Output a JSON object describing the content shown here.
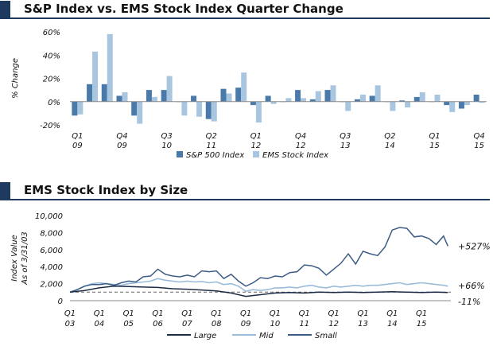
{
  "colors": {
    "sp500": "#4a7aaa",
    "ems": "#a9c6e0",
    "large": "#1c2b45",
    "mid": "#9bbcd9",
    "small": "#3c5c86",
    "header": "#1f3a5f"
  },
  "chart_data": [
    {
      "type": "bar",
      "title": "S&P Index vs. EMS Stock Index Quarter Change",
      "xlabel": "",
      "ylabel": "% Change",
      "ylim": [
        -20,
        60
      ],
      "yticks": [
        "60%",
        "40%",
        "20%",
        "0%",
        "-20%"
      ],
      "tick_values": [
        60,
        40,
        20,
        0,
        -20
      ],
      "xtick_labels": [
        {
          "q": "Q1",
          "y": "09",
          "index": 0
        },
        {
          "q": "Q4",
          "y": "09",
          "index": 3
        },
        {
          "q": "Q3",
          "y": "10",
          "index": 6
        },
        {
          "q": "Q2",
          "y": "11",
          "index": 9
        },
        {
          "q": "Q1",
          "y": "12",
          "index": 12
        },
        {
          "q": "Q4",
          "y": "12",
          "index": 15
        },
        {
          "q": "Q3",
          "y": "13",
          "index": 18
        },
        {
          "q": "Q2",
          "y": "14",
          "index": 21
        },
        {
          "q": "Q1",
          "y": "15",
          "index": 24
        },
        {
          "q": "Q4",
          "y": "15",
          "index": 27
        }
      ],
      "categories": [
        "Q1 09",
        "Q2 09",
        "Q3 09",
        "Q4 09",
        "Q1 10",
        "Q2 10",
        "Q3 10",
        "Q4 10",
        "Q1 11",
        "Q2 11",
        "Q3 11",
        "Q4 11",
        "Q1 12",
        "Q2 12",
        "Q3 12",
        "Q4 12",
        "Q1 13",
        "Q2 13",
        "Q3 13",
        "Q4 13",
        "Q1 14",
        "Q2 14",
        "Q3 14",
        "Q4 14",
        "Q1 15",
        "Q2 15",
        "Q3 15",
        "Q4 15"
      ],
      "series": [
        {
          "name": "S&P 500 Index",
          "values": [
            -12,
            15,
            15,
            5,
            -12,
            10,
            10,
            0,
            5,
            -15,
            11,
            12,
            -3,
            5,
            0,
            10,
            2,
            10,
            0,
            2,
            5,
            0,
            1,
            4,
            0,
            -3,
            -6,
            6
          ]
        },
        {
          "name": "EMS Stock Index",
          "values": [
            -11,
            43,
            58,
            8,
            -19,
            4,
            22,
            -12,
            -13,
            -17,
            7,
            25,
            -18,
            -2,
            3,
            3,
            9,
            14,
            -8,
            6,
            14,
            -8,
            -5,
            8,
            6,
            -9,
            -3,
            -1
          ]
        }
      ],
      "legend": [
        "S&P 500 Index",
        "EMS Stock Index"
      ]
    },
    {
      "type": "line",
      "title": "EMS Stock Index by Size",
      "xlabel": "",
      "ylabel": "Index Value As of 3/31/03",
      "ylabel_lines": [
        "Index Value",
        "As of 3/31/03"
      ],
      "ylim": [
        0,
        10000
      ],
      "yticks": [
        "10,000",
        "8,000",
        "6,000",
        "4,000",
        "2,000",
        "0"
      ],
      "tick_values": [
        10000,
        8000,
        6000,
        4000,
        2000,
        0
      ],
      "reference_line": 1000,
      "xtick_labels": [
        {
          "q": "Q1",
          "y": "03"
        },
        {
          "q": "Q1",
          "y": "04"
        },
        {
          "q": "Q1",
          "y": "05"
        },
        {
          "q": "Q1",
          "y": "06"
        },
        {
          "q": "Q1",
          "y": "07"
        },
        {
          "q": "Q1",
          "y": "08"
        },
        {
          "q": "Q1",
          "y": "09"
        },
        {
          "q": "Q1",
          "y": "10"
        },
        {
          "q": "Q1",
          "y": "11"
        },
        {
          "q": "Q1",
          "y": "12"
        },
        {
          "q": "Q1",
          "y": "13"
        },
        {
          "q": "Q1",
          "y": "14"
        },
        {
          "q": "Q1",
          "y": "15"
        }
      ],
      "x_start": 2003,
      "x_end": 2016,
      "series": [
        {
          "name": "Large",
          "x": [
            2003,
            2003.5,
            2004,
            2004.5,
            2005,
            2005.5,
            2006,
            2006.5,
            2007,
            2007.5,
            2008,
            2008.5,
            2009,
            2009.5,
            2010,
            2010.5,
            2011,
            2011.5,
            2012,
            2012.5,
            2013,
            2013.5,
            2014,
            2014.5,
            2015,
            2015.5,
            2015.9
          ],
          "values": [
            1000,
            1200,
            1500,
            1700,
            1650,
            1600,
            1550,
            1400,
            1350,
            1250,
            1150,
            900,
            500,
            700,
            900,
            950,
            900,
            1000,
            950,
            1000,
            950,
            1000,
            1050,
            1000,
            950,
            1000,
            950
          ]
        },
        {
          "name": "Mid",
          "x": [
            2003,
            2003.25,
            2003.5,
            2003.75,
            2004,
            2004.25,
            2004.5,
            2004.75,
            2005,
            2005.25,
            2005.5,
            2005.75,
            2006,
            2006.25,
            2006.5,
            2006.75,
            2007,
            2007.25,
            2007.5,
            2007.75,
            2008,
            2008.25,
            2008.5,
            2008.75,
            2009,
            2009.25,
            2009.5,
            2009.75,
            2010,
            2010.25,
            2010.5,
            2010.75,
            2011,
            2011.25,
            2011.5,
            2011.75,
            2012,
            2012.25,
            2012.5,
            2012.75,
            2013,
            2013.25,
            2013.5,
            2013.75,
            2014,
            2014.25,
            2014.5,
            2014.75,
            2015,
            2015.25,
            2015.5,
            2015.75,
            2015.9
          ],
          "values": [
            1000,
            1300,
            1700,
            2000,
            2100,
            2000,
            1900,
            1800,
            2000,
            2100,
            2200,
            2300,
            2600,
            2400,
            2300,
            2200,
            2300,
            2200,
            2250,
            2100,
            2200,
            1900,
            2000,
            1700,
            1100,
            1300,
            1200,
            1300,
            1500,
            1500,
            1600,
            1500,
            1700,
            1800,
            1600,
            1500,
            1700,
            1600,
            1700,
            1800,
            1700,
            1800,
            1800,
            1900,
            2000,
            2100,
            1900,
            2000,
            2100,
            2000,
            1900,
            1800,
            1700
          ]
        },
        {
          "name": "Small",
          "x": [
            2003,
            2003.25,
            2003.5,
            2003.75,
            2004,
            2004.25,
            2004.5,
            2004.75,
            2005,
            2005.25,
            2005.5,
            2005.75,
            2006,
            2006.25,
            2006.5,
            2006.75,
            2007,
            2007.25,
            2007.5,
            2007.75,
            2008,
            2008.25,
            2008.5,
            2008.75,
            2009,
            2009.25,
            2009.5,
            2009.75,
            2010,
            2010.25,
            2010.5,
            2010.75,
            2011,
            2011.25,
            2011.5,
            2011.75,
            2012,
            2012.25,
            2012.5,
            2012.75,
            2013,
            2013.25,
            2013.5,
            2013.75,
            2014,
            2014.25,
            2014.5,
            2014.75,
            2015,
            2015.25,
            2015.5,
            2015.75,
            2015.9
          ],
          "values": [
            1000,
            1300,
            1700,
            1900,
            1900,
            2000,
            1800,
            2100,
            2300,
            2200,
            2800,
            2900,
            3700,
            3100,
            2900,
            2800,
            3000,
            2800,
            3500,
            3400,
            3500,
            2600,
            3100,
            2300,
            1700,
            2100,
            2700,
            2600,
            2900,
            2800,
            3300,
            3400,
            4200,
            4100,
            3800,
            3000,
            3700,
            4400,
            5500,
            4300,
            5800,
            5500,
            5300,
            6300,
            8300,
            8600,
            8500,
            7500,
            7600,
            7300,
            6600,
            7600,
            6400
          ]
        }
      ],
      "end_labels": [
        "+527%",
        "+66%",
        "-11%"
      ],
      "legend": [
        "Large",
        "Mid",
        "Small"
      ]
    }
  ]
}
